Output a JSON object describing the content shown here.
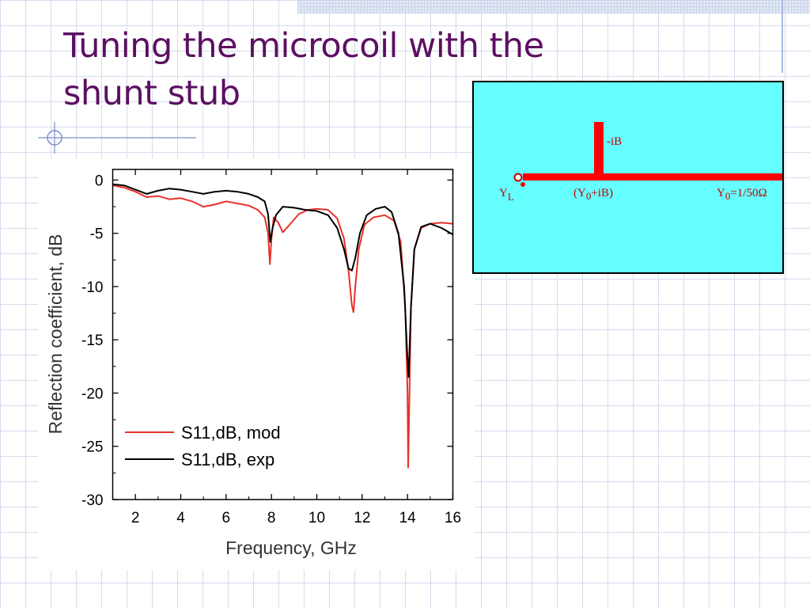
{
  "slide": {
    "title_line1": "Tuning the microcoil with the",
    "title_line2": "shunt stub"
  },
  "colors": {
    "title": "#5c0f62",
    "mod": "#e8312a",
    "exp": "#000000",
    "schematic_bg": "#66ffff",
    "schematic_line": "#ff0000",
    "schematic_text": "#c00000"
  },
  "schematic": {
    "stub_label": "-iB",
    "load_label_main": "Y",
    "load_label_sub": "L",
    "mid_label_pre": "(Y",
    "mid_label_sub": "0",
    "mid_label_post": "+iB)",
    "line_label_main": "Y",
    "line_label_sub": "0",
    "line_label_post": "=1/50Ω"
  },
  "chart_data": {
    "type": "line",
    "title": "",
    "xlabel": "Frequency, GHz",
    "ylabel": "Reflection coefficient, dB",
    "xlim": [
      1,
      16
    ],
    "ylim": [
      -30,
      1
    ],
    "xticks": [
      2,
      4,
      6,
      8,
      10,
      12,
      14,
      16
    ],
    "yticks": [
      0,
      -5,
      -10,
      -15,
      -20,
      -25,
      -30
    ],
    "legend_position": "bottom-left",
    "grid": false,
    "series": [
      {
        "name": "S11,dB, mod",
        "color": "#e8312a",
        "x": [
          1.0,
          1.5,
          2.0,
          2.5,
          3.0,
          3.5,
          4.0,
          4.5,
          5.0,
          5.5,
          6.0,
          6.5,
          7.0,
          7.4,
          7.7,
          7.85,
          7.93,
          8.0,
          8.1,
          8.3,
          8.5,
          8.8,
          9.2,
          9.6,
          10.0,
          10.5,
          10.9,
          11.2,
          11.4,
          11.55,
          11.62,
          11.7,
          11.85,
          12.1,
          12.5,
          13.0,
          13.4,
          13.7,
          13.9,
          14.0,
          14.03,
          14.07,
          14.15,
          14.3,
          14.6,
          15.0,
          15.5,
          16.0
        ],
        "y": [
          -0.5,
          -0.7,
          -1.1,
          -1.6,
          -1.5,
          -1.8,
          -1.7,
          -2.0,
          -2.5,
          -2.3,
          -2.0,
          -2.2,
          -2.4,
          -2.8,
          -3.5,
          -5.0,
          -7.9,
          -5.5,
          -3.5,
          -4.0,
          -4.9,
          -4.2,
          -3.2,
          -2.8,
          -2.7,
          -2.8,
          -3.6,
          -5.5,
          -8.5,
          -11.8,
          -12.4,
          -10.0,
          -6.5,
          -4.2,
          -3.5,
          -3.3,
          -3.8,
          -5.8,
          -12.0,
          -20.0,
          -27.0,
          -22.0,
          -12.0,
          -6.5,
          -4.5,
          -4.1,
          -4.0,
          -4.1
        ]
      },
      {
        "name": "S11,dB, exp",
        "color": "#000000",
        "x": [
          1.0,
          1.5,
          2.0,
          2.5,
          3.0,
          3.5,
          4.0,
          4.5,
          5.0,
          5.5,
          6.0,
          6.5,
          7.0,
          7.4,
          7.7,
          7.85,
          7.95,
          8.05,
          8.2,
          8.5,
          9.0,
          9.5,
          10.0,
          10.5,
          10.9,
          11.2,
          11.4,
          11.55,
          11.7,
          11.9,
          12.2,
          12.6,
          13.0,
          13.3,
          13.6,
          13.85,
          13.98,
          14.05,
          14.15,
          14.3,
          14.6,
          15.0,
          15.5,
          16.0
        ],
        "y": [
          -0.4,
          -0.5,
          -0.9,
          -1.3,
          -1.0,
          -0.8,
          -0.9,
          -1.1,
          -1.3,
          -1.1,
          -1.0,
          -1.1,
          -1.3,
          -1.6,
          -2.0,
          -3.2,
          -5.8,
          -4.5,
          -3.3,
          -2.5,
          -2.6,
          -2.8,
          -2.9,
          -3.3,
          -4.5,
          -6.5,
          -8.3,
          -8.5,
          -7.3,
          -5.0,
          -3.3,
          -2.7,
          -2.5,
          -3.0,
          -5.0,
          -10.0,
          -16.0,
          -18.5,
          -12.0,
          -6.5,
          -4.4,
          -4.1,
          -4.5,
          -5.1
        ]
      }
    ]
  }
}
